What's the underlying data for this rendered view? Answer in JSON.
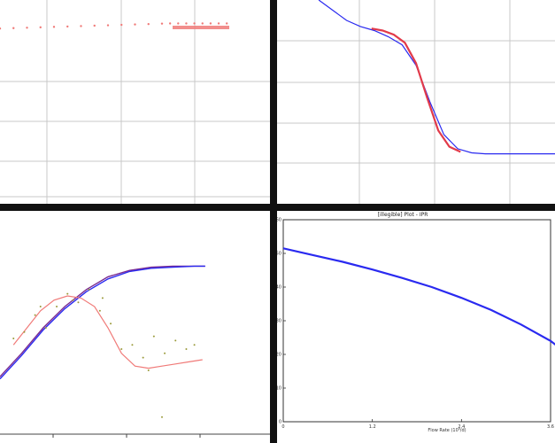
{
  "colors": {
    "frame": "#111111",
    "grid": "#c8c8c8",
    "blue": "#2a2af0",
    "red": "#e23a4a",
    "salmon": "#f07a78",
    "purple": "#7a2a90",
    "olive": "#9a9a3a"
  },
  "chart_data": [
    {
      "type": "scatter",
      "title": "",
      "xlim": [
        0,
        1
      ],
      "ylim": [
        0,
        1
      ],
      "grid": true,
      "series": [
        {
          "color": "#f07a78",
          "x": [
            0.0,
            0.05,
            0.1,
            0.15,
            0.2,
            0.25,
            0.3,
            0.35,
            0.4,
            0.45,
            0.5,
            0.55,
            0.6,
            0.63,
            0.66,
            0.69,
            0.72,
            0.75,
            0.78,
            0.81,
            0.84
          ],
          "y": [
            0.86,
            0.862,
            0.864,
            0.866,
            0.868,
            0.87,
            0.872,
            0.874,
            0.876,
            0.878,
            0.88,
            0.882,
            0.884,
            0.885,
            0.885,
            0.885,
            0.885,
            0.885,
            0.885,
            0.885,
            0.885
          ]
        }
      ]
    },
    {
      "type": "line",
      "title": "",
      "xlim": [
        0,
        1
      ],
      "ylim": [
        0,
        1
      ],
      "grid": true,
      "series": [
        {
          "color": "#2a2af0",
          "x": [
            0.15,
            0.2,
            0.25,
            0.3,
            0.35,
            0.4,
            0.45,
            0.5,
            0.55,
            0.6,
            0.65,
            0.7,
            0.75,
            0.8,
            0.85,
            0.9,
            0.95,
            1.0
          ],
          "y": [
            1.0,
            0.95,
            0.9,
            0.87,
            0.85,
            0.82,
            0.78,
            0.68,
            0.5,
            0.34,
            0.27,
            0.25,
            0.245,
            0.245,
            0.245,
            0.245,
            0.245,
            0.245
          ]
        },
        {
          "color": "#e23a4a",
          "x": [
            0.34,
            0.38,
            0.42,
            0.46,
            0.5,
            0.54,
            0.58,
            0.62,
            0.66
          ],
          "y": [
            0.86,
            0.85,
            0.83,
            0.79,
            0.69,
            0.52,
            0.36,
            0.28,
            0.255
          ]
        }
      ]
    },
    {
      "type": "line",
      "title": "",
      "xlim": [
        0,
        1
      ],
      "ylim": [
        0,
        1
      ],
      "grid": false,
      "series": [
        {
          "color": "#7a2a90",
          "x": [
            0.0,
            0.08,
            0.16,
            0.24,
            0.32,
            0.4,
            0.48,
            0.56,
            0.64,
            0.72,
            0.76
          ],
          "y": [
            0.27,
            0.38,
            0.5,
            0.6,
            0.68,
            0.74,
            0.77,
            0.785,
            0.79,
            0.79,
            0.79
          ]
        },
        {
          "color": "#2a2af0",
          "x": [
            0.0,
            0.08,
            0.16,
            0.24,
            0.32,
            0.4,
            0.48,
            0.56,
            0.64,
            0.72,
            0.76
          ],
          "y": [
            0.26,
            0.37,
            0.49,
            0.59,
            0.67,
            0.73,
            0.765,
            0.78,
            0.785,
            0.79,
            0.79
          ]
        },
        {
          "color": "#f07a78",
          "x": [
            0.05,
            0.1,
            0.15,
            0.2,
            0.25,
            0.3,
            0.35,
            0.4,
            0.45,
            0.5,
            0.55,
            0.6,
            0.65,
            0.7,
            0.75
          ],
          "y": [
            0.42,
            0.5,
            0.58,
            0.63,
            0.65,
            0.64,
            0.6,
            0.5,
            0.38,
            0.32,
            0.31,
            0.32,
            0.33,
            0.34,
            0.35
          ]
        },
        {
          "color": "#9a9a3a",
          "x": [
            0.05,
            0.09,
            0.13,
            0.17,
            0.21,
            0.25,
            0.29,
            0.33,
            0.37,
            0.41,
            0.45,
            0.49,
            0.53,
            0.57,
            0.61,
            0.65,
            0.69,
            0.72,
            0.15,
            0.27,
            0.38,
            0.55,
            0.6
          ],
          "y": [
            0.45,
            0.48,
            0.56,
            0.5,
            0.6,
            0.66,
            0.62,
            0.68,
            0.58,
            0.52,
            0.4,
            0.42,
            0.36,
            0.46,
            0.38,
            0.44,
            0.4,
            0.42,
            0.6,
            0.63,
            0.64,
            0.3,
            0.08
          ]
        }
      ]
    },
    {
      "type": "line",
      "title": "[illegible] Plot - IPR",
      "xlabel": "Flow Rate (10³/d)",
      "ylabel": "",
      "xlim": [
        0,
        3.6
      ],
      "ylim": [
        0,
        60
      ],
      "x_ticks": [
        "0",
        "1.2",
        "2.4",
        "3.6"
      ],
      "y_ticks": [
        "0",
        "10",
        "20",
        "30",
        "40",
        "50",
        "60"
      ],
      "grid": false,
      "series": [
        {
          "color": "#2a2af0",
          "x": [
            0,
            0.4,
            0.8,
            1.2,
            1.6,
            2.0,
            2.4,
            2.8,
            3.2,
            3.6,
            4.1
          ],
          "y": [
            51.5,
            49.5,
            47.5,
            45.2,
            42.7,
            40.0,
            36.8,
            33.2,
            28.9,
            24.0,
            15.5
          ]
        }
      ]
    }
  ]
}
